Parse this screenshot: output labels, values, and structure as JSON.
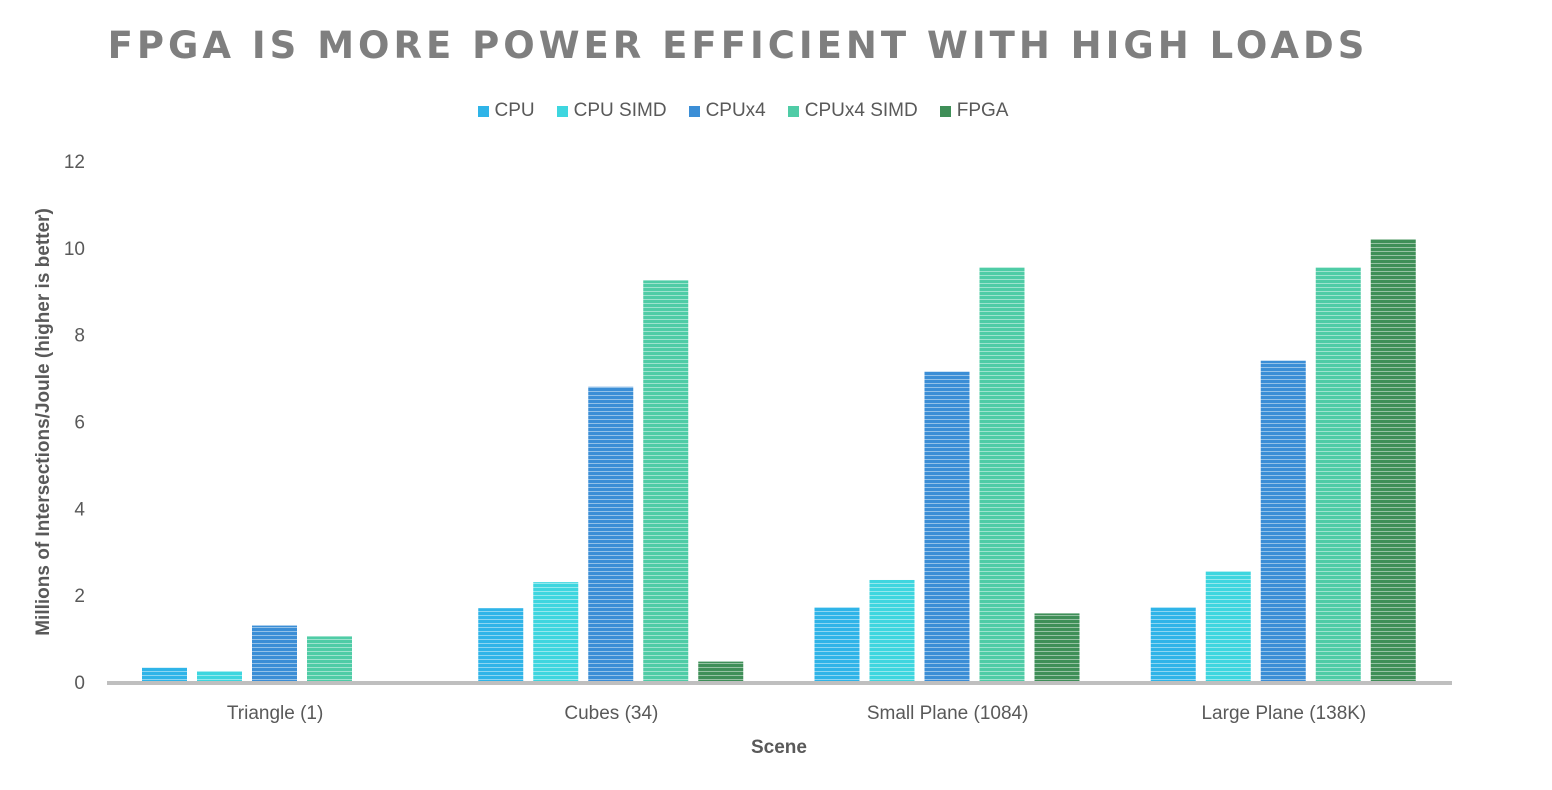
{
  "chart_data": {
    "type": "bar",
    "title": "FPGA IS MORE POWER EFFICIENT WITH HIGH LOADS",
    "xlabel": "Scene",
    "ylabel": "Millions of Intersections/Joule (higher is better)",
    "categories": [
      "Triangle (1)",
      "Cubes (34)",
      "Small Plane (1084)",
      "Large Plane (138K)"
    ],
    "ylim": [
      0,
      12
    ],
    "yticks": [
      0,
      2,
      4,
      6,
      8,
      10,
      12
    ],
    "grid": false,
    "legend_position": "top",
    "series": [
      {
        "name": "CPU",
        "color": "#2fb4e8",
        "values": [
          0.33,
          1.7,
          1.72,
          1.72
        ]
      },
      {
        "name": "CPU SIMD",
        "color": "#3ed6df",
        "values": [
          0.25,
          2.3,
          2.35,
          2.55
        ]
      },
      {
        "name": "CPUx4",
        "color": "#3b8ed6",
        "values": [
          1.3,
          6.8,
          7.15,
          7.4
        ]
      },
      {
        "name": "CPUx4 SIMD",
        "color": "#4fcca6",
        "values": [
          1.05,
          9.25,
          9.55,
          9.55
        ]
      },
      {
        "name": "FPGA",
        "color": "#3f8f58",
        "values": [
          0,
          0.47,
          1.58,
          10.2
        ]
      }
    ]
  }
}
